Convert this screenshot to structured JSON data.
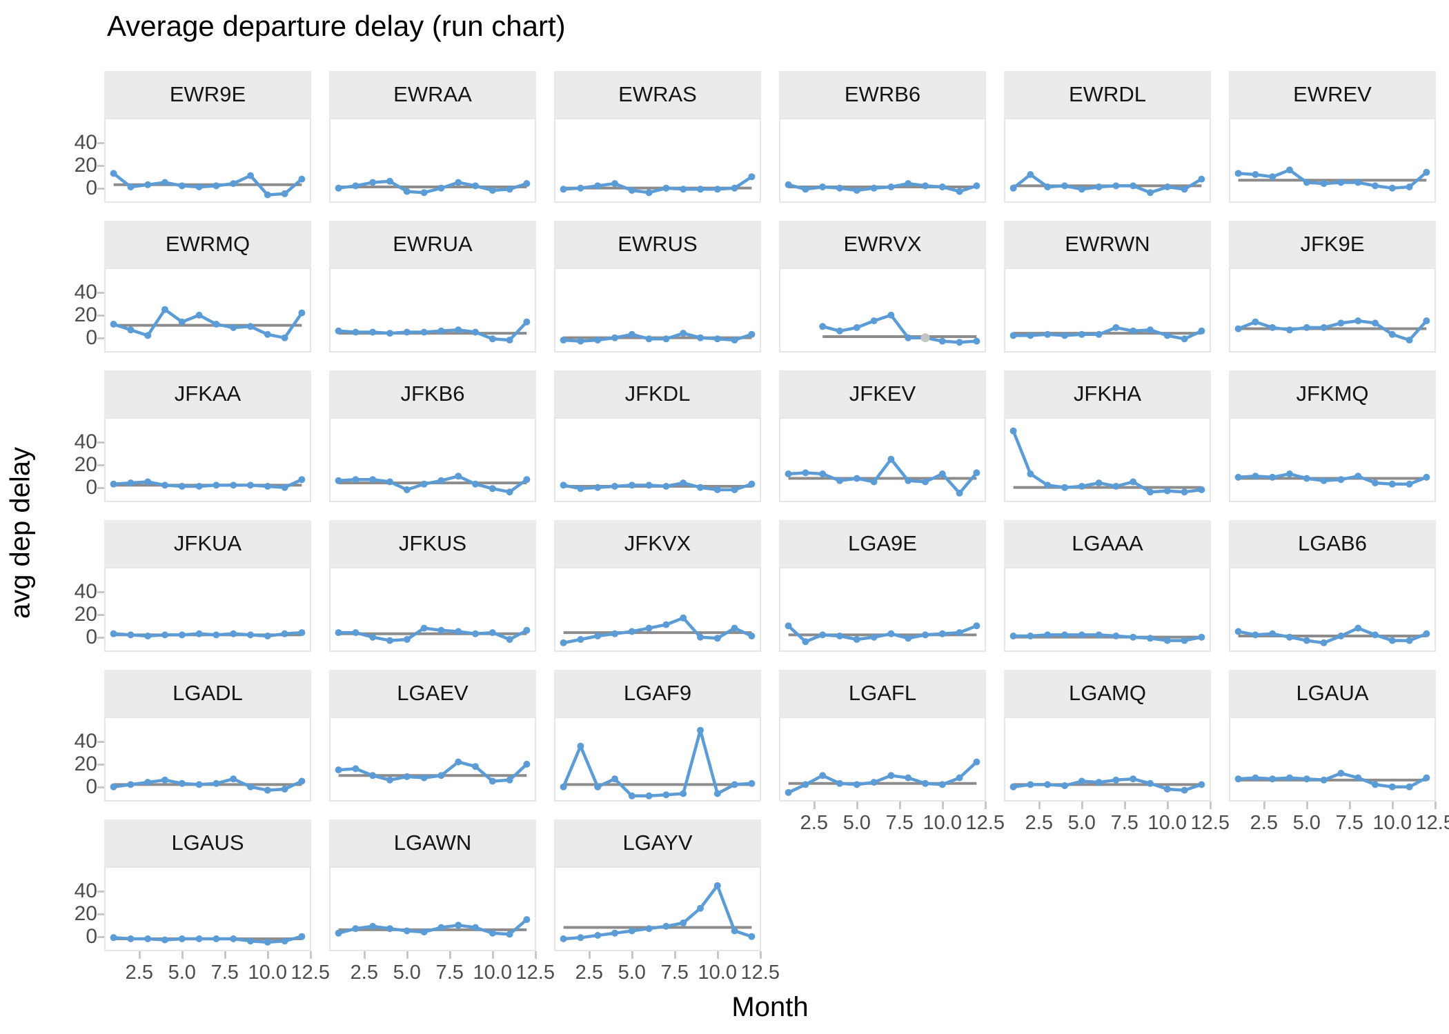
{
  "title": "Average departure delay (run chart)",
  "y_axis_title": "avg dep delay",
  "x_axis_title": "Month",
  "axes": {
    "y_tick_labels": [
      "40",
      "20",
      "0"
    ],
    "y_tick_values": [
      40,
      20,
      0
    ],
    "x_tick_labels": [
      "2.5",
      "5.0",
      "7.5",
      "10.0",
      "12.5"
    ],
    "x_tick_values": [
      2.5,
      5.0,
      7.5,
      10.0,
      12.5
    ]
  },
  "colors": {
    "line_blue": "#5B9CD6",
    "mean_gray": "#8C8C8C",
    "na_point_gray": "#C4C4C4",
    "strip_bg": "#EBEBEB",
    "panel_border": "#E6E6E6",
    "tick_text": "#4D4D4D"
  },
  "chart_data": {
    "type": "line",
    "title": "Average departure delay (run chart)",
    "xlabel": "Month",
    "ylabel": "avg dep delay",
    "x": [
      1,
      2,
      3,
      4,
      5,
      6,
      7,
      8,
      9,
      10,
      11,
      12
    ],
    "xlim": [
      0.45,
      12.55
    ],
    "ylim": [
      -13,
      62
    ],
    "grid": false,
    "legend": "none",
    "note": "33 facets (origin+carrier), each with a blue monthly run line and a gray horizontal mean reference line",
    "facets": [
      {
        "label": "EWR9E",
        "mean": 3,
        "y_axis": true,
        "x_axis": false,
        "values": [
          13,
          1,
          3,
          5,
          2,
          1,
          2,
          4,
          11,
          -6,
          -5,
          8
        ]
      },
      {
        "label": "EWRAA",
        "mean": 1,
        "y_axis": false,
        "x_axis": false,
        "values": [
          0,
          2,
          5,
          6,
          -3,
          -4,
          0,
          5,
          2,
          -2,
          -1,
          4
        ]
      },
      {
        "label": "EWRAS",
        "mean": 0,
        "y_axis": false,
        "x_axis": false,
        "values": [
          -1,
          0,
          2,
          4,
          -2,
          -4,
          0,
          -1,
          -1,
          -1,
          0,
          10
        ]
      },
      {
        "label": "EWRB6",
        "mean": 1,
        "y_axis": false,
        "x_axis": false,
        "values": [
          3,
          -1,
          1,
          0,
          -2,
          0,
          1,
          4,
          2,
          1,
          -3,
          2
        ]
      },
      {
        "label": "EWRDL",
        "mean": 2,
        "y_axis": false,
        "x_axis": false,
        "values": [
          0,
          12,
          1,
          2,
          -1,
          1,
          2,
          2,
          -4,
          1,
          -1,
          8
        ]
      },
      {
        "label": "EWREV",
        "mean": 7,
        "y_axis": false,
        "x_axis": false,
        "values": [
          13,
          12,
          10,
          16,
          5,
          4,
          5,
          5,
          2,
          0,
          1,
          14
        ]
      },
      {
        "label": "EWRMQ",
        "mean": 11,
        "y_axis": true,
        "x_axis": false,
        "values": [
          12,
          7,
          2,
          25,
          14,
          20,
          12,
          9,
          10,
          3,
          0,
          22
        ]
      },
      {
        "label": "EWRUA",
        "mean": 4,
        "y_axis": false,
        "x_axis": false,
        "values": [
          6,
          5,
          5,
          4,
          5,
          5,
          6,
          7,
          5,
          -1,
          -2,
          14
        ]
      },
      {
        "label": "EWRUS",
        "mean": 0,
        "y_axis": false,
        "x_axis": false,
        "values": [
          -2,
          -3,
          -2,
          0,
          3,
          -1,
          -1,
          4,
          0,
          -1,
          -2,
          3
        ]
      },
      {
        "label": "EWRVX",
        "mean": 1,
        "y_axis": false,
        "x_axis": false,
        "values": [
          null,
          null,
          10,
          6,
          9,
          15,
          20,
          0,
          0,
          -3,
          -4,
          -3
        ],
        "gray_point": {
          "month": 9,
          "value": 0
        }
      },
      {
        "label": "EWRWN",
        "mean": 4,
        "y_axis": false,
        "x_axis": false,
        "values": [
          2,
          2,
          3,
          2,
          3,
          3,
          9,
          6,
          7,
          2,
          -1,
          6
        ]
      },
      {
        "label": "JFK9E",
        "mean": 8,
        "y_axis": false,
        "x_axis": false,
        "values": [
          8,
          14,
          9,
          7,
          9,
          9,
          13,
          15,
          13,
          3,
          -2,
          15
        ]
      },
      {
        "label": "JFKAA",
        "mean": 2,
        "y_axis": true,
        "x_axis": false,
        "values": [
          3,
          4,
          5,
          2,
          1,
          1,
          2,
          2,
          2,
          1,
          0,
          7
        ]
      },
      {
        "label": "JFKB6",
        "mean": 4,
        "y_axis": false,
        "x_axis": false,
        "values": [
          6,
          7,
          7,
          5,
          -2,
          3,
          6,
          10,
          3,
          -1,
          -4,
          7
        ]
      },
      {
        "label": "JFKDL",
        "mean": 1,
        "y_axis": false,
        "x_axis": false,
        "values": [
          2,
          -1,
          0,
          1,
          2,
          2,
          1,
          4,
          0,
          -2,
          -2,
          3
        ]
      },
      {
        "label": "JFKEV",
        "mean": 8,
        "y_axis": false,
        "x_axis": false,
        "values": [
          12,
          13,
          12,
          6,
          8,
          5,
          25,
          6,
          5,
          12,
          -5,
          13
        ]
      },
      {
        "label": "JFKHA",
        "mean": 0,
        "y_axis": false,
        "x_axis": false,
        "values": [
          50,
          12,
          2,
          0,
          1,
          4,
          1,
          5,
          -4,
          -3,
          -4,
          -2
        ]
      },
      {
        "label": "JFKMQ",
        "mean": 8,
        "y_axis": false,
        "x_axis": false,
        "values": [
          9,
          10,
          9,
          12,
          8,
          6,
          7,
          10,
          4,
          3,
          3,
          9
        ]
      },
      {
        "label": "JFKUA",
        "mean": 2,
        "y_axis": true,
        "x_axis": false,
        "values": [
          3,
          2,
          1,
          2,
          2,
          3,
          2,
          3,
          2,
          1,
          3,
          4
        ]
      },
      {
        "label": "JFKUS",
        "mean": 3,
        "y_axis": false,
        "x_axis": false,
        "values": [
          4,
          4,
          0,
          -3,
          -2,
          8,
          6,
          5,
          3,
          4,
          -2,
          6
        ]
      },
      {
        "label": "JFKVX",
        "mean": 4,
        "y_axis": false,
        "x_axis": false,
        "values": [
          -5,
          -2,
          1,
          3,
          5,
          8,
          11,
          17,
          0,
          -1,
          8,
          1
        ]
      },
      {
        "label": "LGA9E",
        "mean": 2,
        "y_axis": false,
        "x_axis": false,
        "values": [
          10,
          -4,
          2,
          1,
          -2,
          0,
          3,
          -1,
          2,
          3,
          4,
          10
        ]
      },
      {
        "label": "LGAAA",
        "mean": 0,
        "y_axis": false,
        "x_axis": false,
        "values": [
          1,
          1,
          2,
          2,
          2,
          2,
          1,
          0,
          -1,
          -3,
          -3,
          0
        ]
      },
      {
        "label": "LGAB6",
        "mean": 1,
        "y_axis": false,
        "x_axis": false,
        "values": [
          5,
          2,
          3,
          0,
          -3,
          -5,
          1,
          8,
          2,
          -3,
          -3,
          3
        ]
      },
      {
        "label": "LGADL",
        "mean": 2,
        "y_axis": true,
        "x_axis": false,
        "values": [
          0,
          2,
          4,
          6,
          3,
          2,
          3,
          7,
          0,
          -3,
          -2,
          5
        ]
      },
      {
        "label": "LGAEV",
        "mean": 10,
        "y_axis": false,
        "x_axis": false,
        "values": [
          15,
          16,
          10,
          6,
          9,
          8,
          10,
          22,
          18,
          5,
          6,
          20
        ]
      },
      {
        "label": "LGAF9",
        "mean": 2,
        "y_axis": false,
        "x_axis": false,
        "values": [
          0,
          36,
          0,
          7,
          -8,
          -8,
          -7,
          -6,
          50,
          -6,
          2,
          3
        ]
      },
      {
        "label": "LGAFL",
        "mean": 3,
        "y_axis": false,
        "x_axis": true,
        "values": [
          -5,
          2,
          10,
          3,
          2,
          4,
          10,
          8,
          3,
          2,
          8,
          22
        ]
      },
      {
        "label": "LGAMQ",
        "mean": 2,
        "y_axis": false,
        "x_axis": true,
        "values": [
          0,
          2,
          2,
          1,
          5,
          4,
          6,
          7,
          3,
          -2,
          -3,
          2
        ]
      },
      {
        "label": "LGAUA",
        "mean": 6,
        "y_axis": false,
        "x_axis": true,
        "values": [
          7,
          8,
          7,
          8,
          7,
          6,
          12,
          8,
          2,
          0,
          0,
          8
        ]
      },
      {
        "label": "LGAUS",
        "mean": -2,
        "y_axis": true,
        "x_axis": true,
        "values": [
          -1,
          -2,
          -2,
          -3,
          -2,
          -2,
          -2,
          -2,
          -4,
          -5,
          -4,
          0
        ]
      },
      {
        "label": "LGAWN",
        "mean": 6,
        "y_axis": false,
        "x_axis": true,
        "values": [
          3,
          7,
          9,
          7,
          5,
          4,
          8,
          10,
          8,
          3,
          2,
          15
        ]
      },
      {
        "label": "LGAYV",
        "mean": 8,
        "y_axis": false,
        "x_axis": true,
        "values": [
          -2,
          -1,
          1,
          3,
          5,
          7,
          9,
          12,
          25,
          45,
          5,
          0
        ]
      }
    ]
  }
}
